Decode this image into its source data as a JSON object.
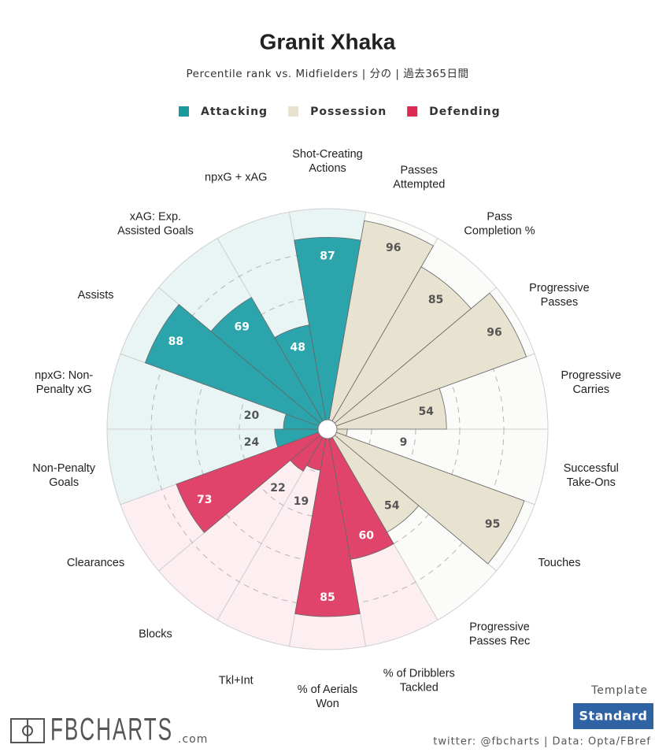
{
  "chart_data": {
    "type": "polar_bar",
    "title": "Granit Xhaka",
    "subtitle": "Percentile rank vs. Midfielders | 分の | 過去365日間",
    "categories": [
      "Shot-Creating\nActions",
      "Passes\nAttempted",
      "Pass\nCompletion %",
      "Progressive\nPasses",
      "Progressive\nCarries",
      "Successful\nTake-Ons",
      "Touches",
      "Progressive\nPasses Rec",
      "% of Dribblers\nTackled",
      "% of Aerials\nWon",
      "Tkl+Int",
      "Blocks",
      "Clearances",
      "Non-Penalty\nGoals",
      "npxG: Non-\nPenalty xG",
      "Assists",
      "xAG: Exp.\nAssisted Goals",
      "npxG + xAG"
    ],
    "series": [
      {
        "name": "Attacking",
        "color": "#2ba5ab",
        "legend_color": "#1a9a9c",
        "background_color": "#e9f5f5",
        "value_label_color": "#ffffff",
        "values": [
          87,
          null,
          null,
          null,
          null,
          null,
          null,
          null,
          null,
          null,
          null,
          null,
          null,
          24,
          20,
          88,
          69,
          48
        ]
      },
      {
        "name": "Possession",
        "color": "#e8e2d1",
        "legend_color": "#e8e2d1",
        "background_color": "#fbfbf9",
        "value_label_color": "#555555",
        "values": [
          null,
          96,
          85,
          96,
          54,
          9,
          95,
          54,
          null,
          null,
          null,
          null,
          null,
          null,
          null,
          null,
          null,
          null
        ]
      },
      {
        "name": "Defending",
        "color": "#e1446a",
        "legend_color": "#dc2a52",
        "background_color": "#fdeef1",
        "value_label_color": "#ffffff",
        "values": [
          null,
          null,
          null,
          null,
          null,
          null,
          null,
          null,
          60,
          85,
          19,
          22,
          73,
          null,
          null,
          null,
          null,
          null
        ]
      }
    ],
    "ylim": [
      0,
      100
    ],
    "yticks": [
      20,
      40,
      60,
      80
    ],
    "grid": true,
    "template_label": "Template",
    "template_button": "Standard",
    "logo": "FBCHARTS",
    "logo_suffix": ".com",
    "credits": "twitter: @fbcharts | Data: Opta/FBref"
  }
}
